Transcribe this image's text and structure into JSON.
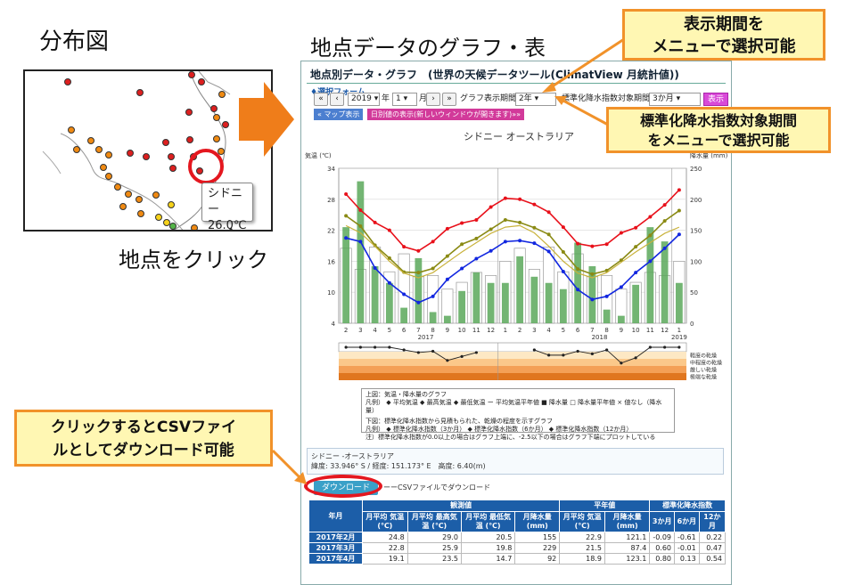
{
  "headings": {
    "map_title": "分布図",
    "graph_title": "地点データのグラフ・表",
    "click_caption": "地点をクリック"
  },
  "map": {
    "tooltip_station": "シドニー",
    "tooltip_temp": "26.0℃"
  },
  "callouts": {
    "period": [
      "表示期間を",
      "メニューで選択可能"
    ],
    "spi": [
      "標準化降水指数対象期間",
      "をメニューで選択可能"
    ],
    "csv": [
      "クリックするとCSVファイ",
      "ルとしてダウンロード可能"
    ]
  },
  "panel": {
    "title": "地点別データ・グラフ　(世界の天候データツール(ClimatView 月統計値))",
    "form_label": "♦選択フォーム",
    "year_select": "2019",
    "year_unit": "年",
    "month_select": "1",
    "month_unit": "月",
    "period_label": "グラフ表示期間:",
    "period_select": "2年",
    "spi_label": "標準化降水指数対象期間:",
    "spi_select": "3か月",
    "show_button": "表示",
    "map_button": "« マップ表示",
    "daily_button": "日別値の表示(新しいウィンドウが開きます)»»",
    "legend_lines": [
      "上図：気温・降水量のグラフ",
      "凡例） ◆ 平均気温  ◆ 最高気温  ◆ 最低気温  ー 平均気温平年値  ■ 降水量  □ 降水量平年値  × 値なし（降水量）",
      "下図：標準化降水指数から見積もられた、乾燥の程度を示すグラフ",
      "凡例） ◆ 標準化降水指数（3か月） ◆ 標準化降水指数（6か月） ◆ 標準化降水指数（12か月）",
      "注）標準化降水指数が0.0以上の場合はグラフ上端に、-2.5以下の場合はグラフ下端にプロットしている"
    ],
    "station_name": "シドニー -オーストラリア",
    "station_coords": "緯度: 33.946° S / 経度: 151.173° E　高度: 6.40(m)",
    "download_button": "ダウンロード",
    "download_note": "ーーCSVファイルでダウンロード"
  },
  "table": {
    "group_headers": [
      "観測値",
      "平年値",
      "標準化降水指数"
    ],
    "year_month": "年月",
    "columns": [
      "月平均 気温 (℃)",
      "月平均 最高気温 (℃)",
      "月平均 最低気温 (℃)",
      "月降水量 (mm)",
      "月平均 気温 (℃)",
      "月降水量 (mm)",
      "3か月",
      "6か月",
      "12か月"
    ],
    "rows": [
      [
        "2017年2月",
        "24.8",
        "29.0",
        "20.5",
        "155",
        "22.9",
        "121.1",
        "-0.09",
        "-0.61",
        "0.22"
      ],
      [
        "2017年3月",
        "22.8",
        "25.9",
        "19.8",
        "229",
        "21.5",
        "87.4",
        "0.60",
        "-0.01",
        "0.47"
      ],
      [
        "2017年4月",
        "19.1",
        "23.5",
        "14.7",
        "92",
        "18.9",
        "123.1",
        "0.80",
        "0.13",
        "0.54"
      ]
    ]
  },
  "chart_data": {
    "type": "line",
    "title": "シドニー オーストラリア",
    "ylabel_left": "気温 (℃)",
    "ylabel_right": "降水量 (mm)",
    "ylim_left": [
      4,
      34
    ],
    "yticks_left": [
      4,
      10,
      16,
      22,
      28,
      34
    ],
    "ylim_right": [
      0,
      250
    ],
    "yticks_right": [
      0,
      50,
      100,
      150,
      200,
      250
    ],
    "categories": [
      "2",
      "3",
      "4",
      "5",
      "6",
      "7",
      "8",
      "9",
      "10",
      "11",
      "12",
      "1",
      "2",
      "3",
      "4",
      "5",
      "6",
      "7",
      "8",
      "9",
      "10",
      "11",
      "12",
      "1"
    ],
    "year_labels": [
      "2017",
      "2018",
      "2019"
    ],
    "series": [
      {
        "name": "最高気温",
        "color": "#e8101a",
        "values": [
          29.0,
          25.9,
          23.5,
          22.0,
          18.8,
          18.0,
          19.8,
          22.3,
          23.4,
          24.0,
          26.5,
          28.2,
          28.0,
          27.0,
          25.5,
          22.6,
          19.4,
          18.9,
          19.3,
          21.5,
          22.5,
          24.6,
          26.9,
          29.8
        ]
      },
      {
        "name": "平均気温",
        "color": "#8a8a14",
        "values": [
          24.8,
          22.8,
          19.1,
          16.6,
          13.9,
          13.8,
          14.6,
          17.0,
          19.3,
          20.4,
          22.2,
          24.0,
          23.5,
          22.5,
          21.2,
          17.8,
          14.5,
          13.5,
          14.2,
          16.2,
          18.8,
          21.0,
          23.8,
          25.8
        ]
      },
      {
        "name": "最低気温",
        "color": "#1227e0",
        "values": [
          20.5,
          19.8,
          14.7,
          11.8,
          9.6,
          8.0,
          9.2,
          12.5,
          14.6,
          16.5,
          18.0,
          19.8,
          20.0,
          19.5,
          17.9,
          14.0,
          10.5,
          8.6,
          9.2,
          11.0,
          13.8,
          16.0,
          18.5,
          21.2
        ]
      },
      {
        "name": "平均気温平年値",
        "color": "#c9b23b",
        "values": [
          22.9,
          21.5,
          18.9,
          16.0,
          13.7,
          12.8,
          13.8,
          15.8,
          17.8,
          19.6,
          21.4,
          22.6,
          22.9,
          21.5,
          18.9,
          16.0,
          13.7,
          12.8,
          13.8,
          15.8,
          17.8,
          19.6,
          21.4,
          22.6
        ]
      }
    ],
    "bars": {
      "name": "降水量",
      "color": "#5aa85a",
      "values": [
        155,
        229,
        92,
        65,
        25,
        105,
        18,
        12,
        52,
        82,
        65,
        65,
        108,
        75,
        65,
        55,
        130,
        92,
        22,
        12,
        62,
        155,
        132,
        65
      ]
    },
    "bars_normal": {
      "name": "降水量平年値",
      "values": [
        121,
        87,
        123,
        83,
        112,
        75,
        77,
        55,
        66,
        82,
        77,
        100,
        121,
        87,
        123,
        83,
        112,
        75,
        77,
        55,
        66,
        82,
        77,
        100
      ]
    },
    "drought_series": {
      "name": "標準化降水指数（3か月）",
      "values": [
        0.0,
        0.0,
        0.0,
        0.0,
        -0.2,
        -0.4,
        -0.3,
        -1.0,
        -0.7,
        -0.4,
        null,
        null,
        null,
        -0.2,
        -0.6,
        -0.6,
        -0.3,
        -0.5,
        -0.2,
        -1.2,
        -0.8,
        0.0,
        0.0,
        0.0
      ]
    },
    "drought_levels": [
      "軽度の乾燥",
      "中程度の乾燥",
      "厳しい乾燥",
      "極端な乾燥"
    ]
  }
}
